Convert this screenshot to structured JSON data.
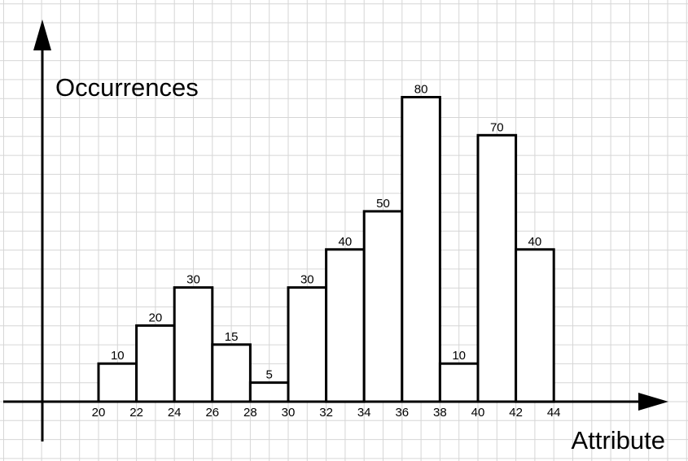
{
  "chart_data": {
    "type": "bar",
    "title": "",
    "xlabel": "Attribute",
    "ylabel": "Occurrences",
    "bin_edges": [
      20,
      22,
      24,
      26,
      28,
      30,
      32,
      34,
      36,
      38,
      40,
      42,
      44
    ],
    "x_tick_labels": [
      "20",
      "22",
      "24",
      "26",
      "28",
      "30",
      "32",
      "34",
      "36",
      "38",
      "40",
      "42",
      "44"
    ],
    "values": [
      10,
      20,
      30,
      15,
      5,
      30,
      40,
      50,
      80,
      10,
      70,
      40
    ],
    "data_labels": [
      "10",
      "20",
      "30",
      "15",
      "5",
      "30",
      "40",
      "50",
      "80",
      "10",
      "70",
      "40"
    ],
    "xlim": [
      18,
      46
    ],
    "ylim": [
      0,
      80
    ],
    "grid": true,
    "bar_fill": "#ffffff",
    "bar_edge": "#000000",
    "grid_color": "#d6d6d6"
  }
}
